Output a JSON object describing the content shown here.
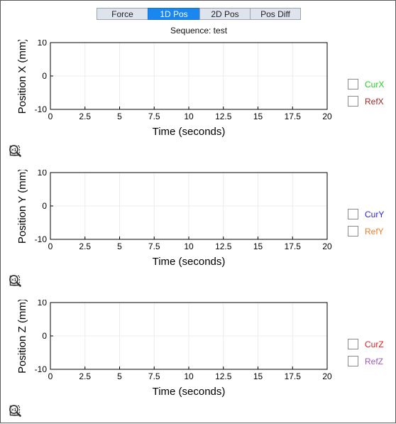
{
  "tabs": [
    {
      "label": "Force",
      "active": false
    },
    {
      "label": "1D Pos",
      "active": true
    },
    {
      "label": "2D Pos",
      "active": false
    },
    {
      "label": "Pos Diff",
      "active": false
    }
  ],
  "sequence_label": "Sequence: test",
  "colors": {
    "curx": "#1fd21f",
    "refx": "#a0281e",
    "cury": "#2323e0",
    "refy": "#f07d2d",
    "curz": "#e31a1c",
    "refz": "#9b59b6"
  },
  "toolbar_icons": [
    "zoom-in-icon",
    "pan-hand-icon",
    "zoom-box-icon",
    "zoom-reset-icon"
  ],
  "chart_data": [
    {
      "type": "line",
      "title": "",
      "xlabel": "Time (seconds)",
      "ylabel": "Position X (mm)",
      "xlim": [
        0,
        20
      ],
      "ylim": [
        -10,
        10
      ],
      "xticks": [
        "0",
        "2.5",
        "5",
        "7.5",
        "10",
        "12.5",
        "15",
        "17.5",
        "20"
      ],
      "yticks": [
        "10",
        "0",
        "-10"
      ],
      "grid": true,
      "legend_position": "right",
      "series": [
        {
          "name": "CurX",
          "color": "#1fd21f",
          "x": [],
          "y": []
        },
        {
          "name": "RefX",
          "color": "#a0281e",
          "x": [],
          "y": []
        }
      ]
    },
    {
      "type": "line",
      "title": "",
      "xlabel": "Time (seconds)",
      "ylabel": "Position Y (mm)",
      "xlim": [
        0,
        20
      ],
      "ylim": [
        -10,
        10
      ],
      "xticks": [
        "0",
        "2.5",
        "5",
        "7.5",
        "10",
        "12.5",
        "15",
        "17.5",
        "20"
      ],
      "yticks": [
        "10",
        "0",
        "-10"
      ],
      "grid": true,
      "legend_position": "right",
      "series": [
        {
          "name": "CurY",
          "color": "#2323e0",
          "x": [],
          "y": []
        },
        {
          "name": "RefY",
          "color": "#f07d2d",
          "x": [],
          "y": []
        }
      ]
    },
    {
      "type": "line",
      "title": "",
      "xlabel": "Time (seconds)",
      "ylabel": "Position Z (mm)",
      "xlim": [
        0,
        20
      ],
      "ylim": [
        -10,
        10
      ],
      "xticks": [
        "0",
        "2.5",
        "5",
        "7.5",
        "10",
        "12.5",
        "15",
        "17.5",
        "20"
      ],
      "yticks": [
        "10",
        "0",
        "-10"
      ],
      "grid": true,
      "legend_position": "right",
      "series": [
        {
          "name": "CurZ",
          "color": "#e31a1c",
          "x": [],
          "y": []
        },
        {
          "name": "RefZ",
          "color": "#9b59b6",
          "x": [],
          "y": []
        }
      ]
    }
  ]
}
